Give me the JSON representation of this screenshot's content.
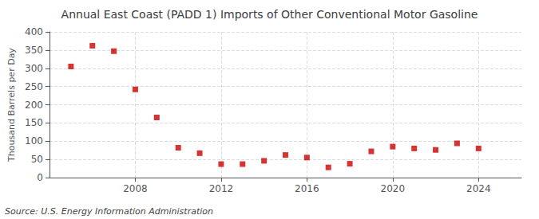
{
  "chart_data": {
    "type": "scatter",
    "title": "Annual East Coast (PADD 1) Imports of Other Conventional Motor Gasoline",
    "ylabel": "Thousand Barrels per Day",
    "annotations": [
      "Source: U.S. Energy Information Administration"
    ],
    "x": [
      2005,
      2006,
      2007,
      2008,
      2009,
      2010,
      2011,
      2012,
      2013,
      2014,
      2015,
      2016,
      2017,
      2018,
      2019,
      2020,
      2021,
      2022,
      2023,
      2024
    ],
    "values": [
      305,
      362,
      347,
      242,
      165,
      82,
      67,
      37,
      37,
      46,
      62,
      55,
      28,
      38,
      72,
      85,
      80,
      76,
      94,
      80
    ],
    "color": "#cc0000",
    "marker": "square",
    "xlim": [
      2004,
      2026
    ],
    "xticks": [
      2008,
      2012,
      2016,
      2020,
      2024
    ],
    "ylim": [
      0,
      400
    ],
    "yticks": [
      0,
      50,
      100,
      150,
      200,
      250,
      300,
      350,
      400
    ],
    "grid": true
  }
}
